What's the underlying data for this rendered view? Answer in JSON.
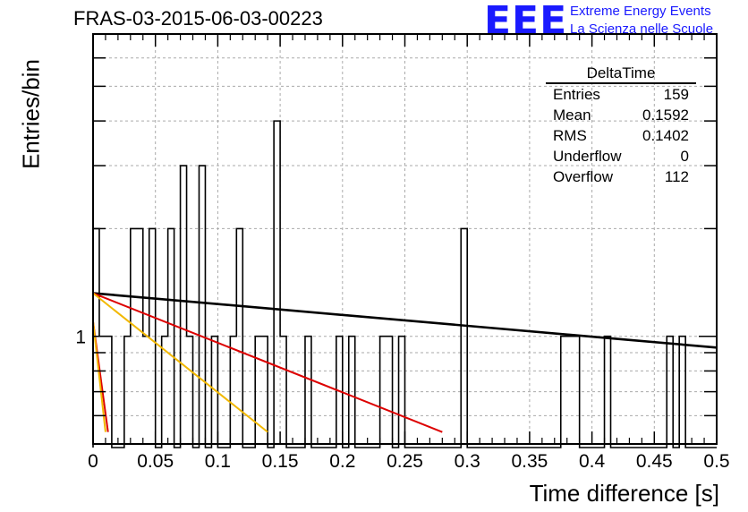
{
  "title": "FRAS-03-2015-06-03-00223",
  "logo": {
    "text": "EEE",
    "line1": "Extreme Energy Events",
    "line2": "La Scienza nelle Scuole",
    "color": "#1a1aff"
  },
  "stats": {
    "name": "DeltaTime",
    "rows": [
      {
        "label": "Entries",
        "value": "159"
      },
      {
        "label": "Mean",
        "value": "0.1592"
      },
      {
        "label": "RMS",
        "value": "0.1402"
      },
      {
        "label": "Underflow",
        "value": "0"
      },
      {
        "label": "Overflow",
        "value": "112"
      }
    ]
  },
  "chart_data": {
    "type": "histogram",
    "title": "FRAS-03-2015-06-03-00223",
    "xlabel": "Time difference [s]",
    "ylabel": "Entries/bin",
    "xlim": [
      0,
      0.5
    ],
    "ylim_log": [
      0.5,
      7
    ],
    "y_scale": "log",
    "grid": true,
    "xtick_labels": [
      "0",
      "0.05",
      "0.1",
      "0.15",
      "0.2",
      "0.25",
      "0.3",
      "0.35",
      "0.4",
      "0.45",
      "0.5"
    ],
    "ytick_labels": [
      {
        "value": 1,
        "label": "1"
      }
    ],
    "bin_width": 0.005,
    "bins": [
      [
        0.0,
        2
      ],
      [
        0.005,
        1
      ],
      [
        0.01,
        1
      ],
      [
        0.015,
        0
      ],
      [
        0.02,
        0
      ],
      [
        0.025,
        1
      ],
      [
        0.03,
        2
      ],
      [
        0.035,
        2
      ],
      [
        0.04,
        1
      ],
      [
        0.045,
        2
      ],
      [
        0.05,
        0
      ],
      [
        0.055,
        1
      ],
      [
        0.06,
        2
      ],
      [
        0.065,
        0
      ],
      [
        0.07,
        3
      ],
      [
        0.075,
        1
      ],
      [
        0.08,
        0
      ],
      [
        0.085,
        3
      ],
      [
        0.09,
        0
      ],
      [
        0.095,
        1
      ],
      [
        0.1,
        0
      ],
      [
        0.105,
        0
      ],
      [
        0.11,
        1
      ],
      [
        0.115,
        2
      ],
      [
        0.12,
        0
      ],
      [
        0.125,
        0
      ],
      [
        0.13,
        1
      ],
      [
        0.135,
        1
      ],
      [
        0.14,
        0
      ],
      [
        0.145,
        4
      ],
      [
        0.15,
        1
      ],
      [
        0.155,
        0
      ],
      [
        0.16,
        0
      ],
      [
        0.165,
        0
      ],
      [
        0.17,
        1
      ],
      [
        0.175,
        0
      ],
      [
        0.18,
        0
      ],
      [
        0.185,
        0
      ],
      [
        0.19,
        0
      ],
      [
        0.195,
        1
      ],
      [
        0.2,
        0
      ],
      [
        0.205,
        1
      ],
      [
        0.21,
        0
      ],
      [
        0.215,
        0
      ],
      [
        0.22,
        0
      ],
      [
        0.225,
        0
      ],
      [
        0.23,
        1
      ],
      [
        0.235,
        1
      ],
      [
        0.24,
        0
      ],
      [
        0.245,
        1
      ],
      [
        0.25,
        0
      ],
      [
        0.255,
        0
      ],
      [
        0.26,
        0
      ],
      [
        0.265,
        0
      ],
      [
        0.27,
        0
      ],
      [
        0.275,
        0
      ],
      [
        0.28,
        0
      ],
      [
        0.285,
        0
      ],
      [
        0.29,
        0
      ],
      [
        0.295,
        2
      ],
      [
        0.3,
        0
      ],
      [
        0.305,
        0
      ],
      [
        0.31,
        0
      ],
      [
        0.315,
        0
      ],
      [
        0.32,
        0
      ],
      [
        0.325,
        0
      ],
      [
        0.33,
        0
      ],
      [
        0.335,
        0
      ],
      [
        0.34,
        0
      ],
      [
        0.345,
        0
      ],
      [
        0.35,
        0
      ],
      [
        0.355,
        0
      ],
      [
        0.36,
        0
      ],
      [
        0.365,
        0
      ],
      [
        0.37,
        0
      ],
      [
        0.375,
        1
      ],
      [
        0.38,
        1
      ],
      [
        0.385,
        1
      ],
      [
        0.39,
        0
      ],
      [
        0.395,
        0
      ],
      [
        0.4,
        0
      ],
      [
        0.405,
        0
      ],
      [
        0.41,
        1
      ],
      [
        0.415,
        0
      ],
      [
        0.42,
        0
      ],
      [
        0.425,
        0
      ],
      [
        0.43,
        0
      ],
      [
        0.435,
        0
      ],
      [
        0.44,
        0
      ],
      [
        0.445,
        0
      ],
      [
        0.45,
        0
      ],
      [
        0.455,
        0
      ],
      [
        0.46,
        1
      ],
      [
        0.465,
        0
      ],
      [
        0.47,
        1
      ],
      [
        0.475,
        0
      ],
      [
        0.48,
        0
      ],
      [
        0.485,
        0
      ],
      [
        0.49,
        0
      ],
      [
        0.495,
        0
      ]
    ],
    "fits": [
      {
        "color": "#000000",
        "x0": 0.0,
        "y0": 1.32,
        "x1": 0.5,
        "y1": 0.93
      },
      {
        "color": "#dd0000",
        "x0": 0.0,
        "y0": 1.32,
        "x1": 0.28,
        "y1": 0.54
      },
      {
        "color": "#f2b800",
        "x0": 0.0,
        "y0": 1.32,
        "x1": 0.14,
        "y1": 0.54
      },
      {
        "color": "#dd0000",
        "x0": 0.0,
        "y0": 1.1,
        "x1": 0.012,
        "y1": 0.54
      },
      {
        "color": "#f2b800",
        "x0": 0.0,
        "y0": 1.1,
        "x1": 0.01,
        "y1": 0.54
      }
    ]
  }
}
